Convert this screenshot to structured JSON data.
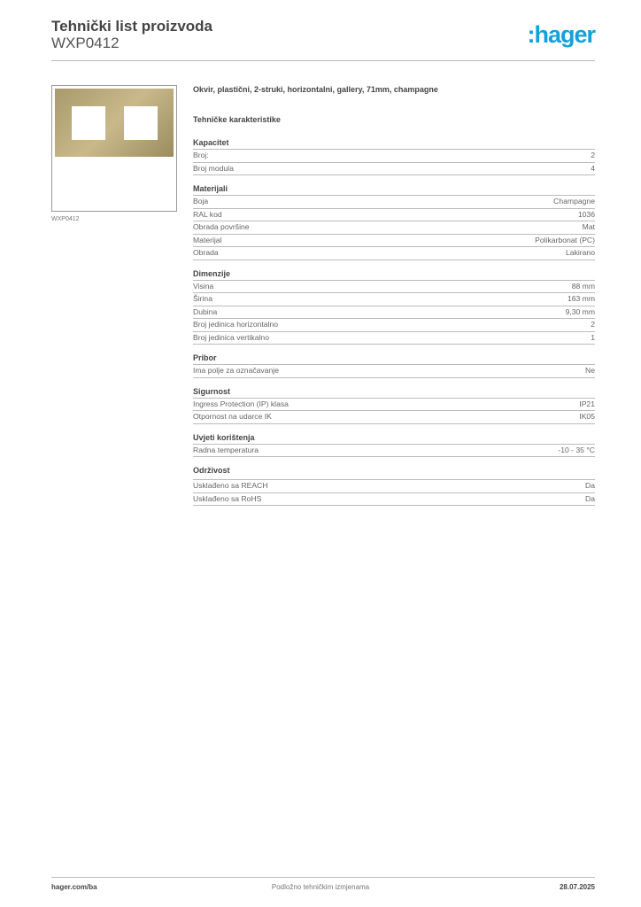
{
  "header": {
    "title": "Tehnički list proizvoda",
    "code": "WXP0412",
    "logo": "hager"
  },
  "product": {
    "image_caption": "WXP0412",
    "image_color": "#b8a878",
    "description": "Okvir, plastični, 2-struki, horizontalni, gallery, 71mm, champagne",
    "characteristics_heading": "Tehničke karakteristike"
  },
  "sections": [
    {
      "title": "Kapacitet",
      "rows": [
        [
          "Broj:",
          "2"
        ],
        [
          "Broj modula",
          "4"
        ]
      ]
    },
    {
      "title": "Materijali",
      "rows": [
        [
          "Boja",
          "Champagne"
        ],
        [
          "RAL kod",
          "1036"
        ],
        [
          "Obrada površine",
          "Mat"
        ],
        [
          "Materijal",
          "Polikarbonat (PC)"
        ],
        [
          "Obrada",
          "Lakirano"
        ]
      ]
    },
    {
      "title": "Dimenzije",
      "rows": [
        [
          "Visina",
          "88 mm"
        ],
        [
          "Širina",
          "163 mm"
        ],
        [
          "Dubina",
          "9,30 mm"
        ],
        [
          "Broj jedinica horizontalno",
          "2"
        ],
        [
          "Broj jedinica vertikalno",
          "1"
        ]
      ]
    },
    {
      "title": "Pribor",
      "rows": [
        [
          "Ima polje za označavanje",
          "Ne"
        ]
      ]
    },
    {
      "title": "Sigurnost",
      "rows": [
        [
          "Ingress Protection (IP) klasa",
          "IP21"
        ],
        [
          "Otpornost na udarce IK",
          "IK05"
        ]
      ]
    },
    {
      "title": "Uvjeti korištenja",
      "rows": [
        [
          "Radna temperatura",
          "-10 - 35 °C"
        ]
      ]
    },
    {
      "title": "Održivost",
      "rows": [
        [
          "Usklađeno sa REACH",
          "Da"
        ],
        [
          "Usklađeno sa RoHS",
          "Da"
        ]
      ]
    }
  ],
  "footer": {
    "website": "hager.com/ba",
    "notice": "Podložno tehničkim izmjenama",
    "date": "28.07.2025"
  },
  "colors": {
    "brand": "#14a0dc"
  }
}
